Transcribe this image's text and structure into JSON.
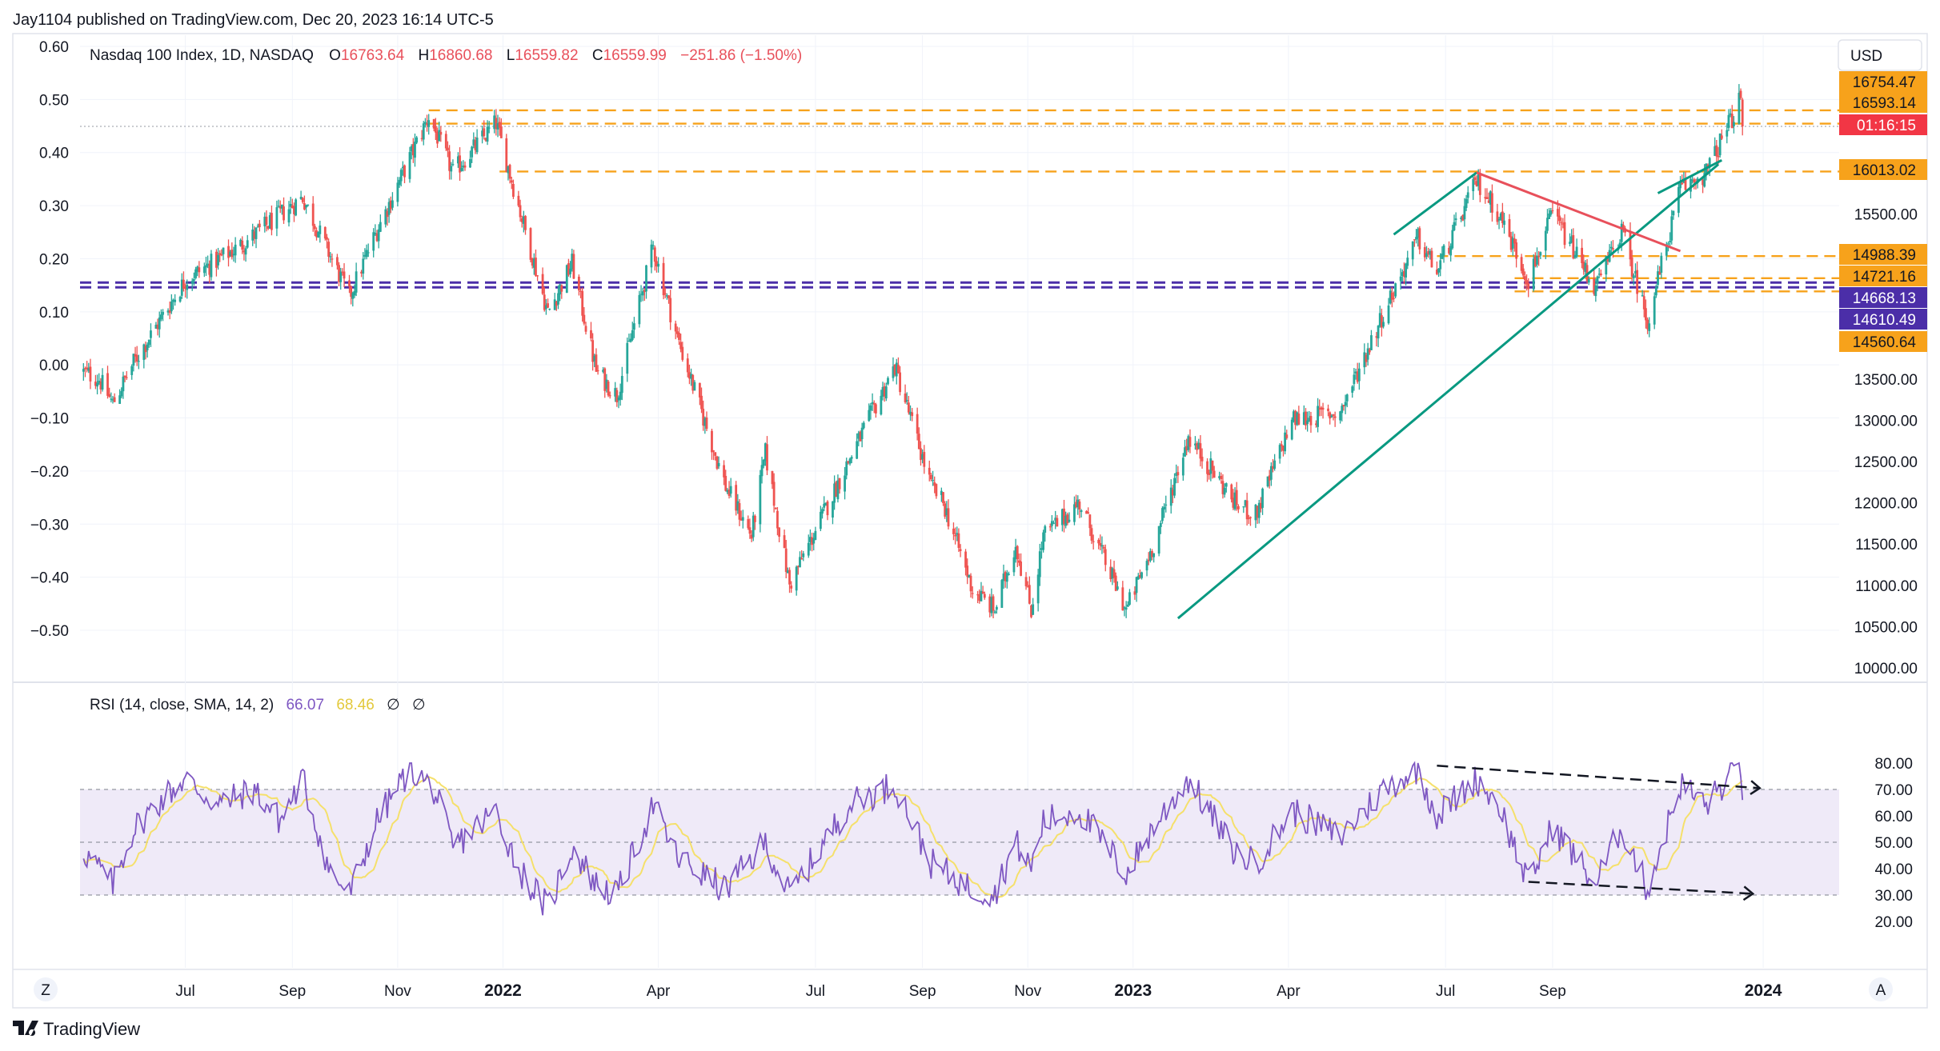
{
  "publisher": "Jay1104 published on TradingView.com, Dec 20, 2023 16:14 UTC-5",
  "brand": "TradingView",
  "currency_button": "USD",
  "z_button": "Z",
  "a_button": "A",
  "colors": {
    "up": "#26a69a",
    "down": "#ef5350",
    "orange_line": "#f7a21b",
    "purple_line": "#4b2ea8",
    "green_trend": "#089981",
    "red_trend": "#e8505b",
    "rsi_line": "#7e57c2",
    "rsi_sma": "#f5e06b",
    "rsi_band": "#efeaf8",
    "countdown": "#f23645"
  },
  "chart_data": [
    {
      "type": "candlestick",
      "name": "price-panel",
      "ohlc_header": {
        "symbol": "Nasdaq 100 Index, 1D, NASDAQ",
        "o_label": "O",
        "o": "16763.64",
        "h_label": "H",
        "h": "16860.68",
        "l_label": "L",
        "l": "16559.82",
        "c_label": "C",
        "c": "16559.99",
        "change": "−251.86 (−1.50%)"
      },
      "left_axis": {
        "ticks": [
          "0.60",
          "0.50",
          "0.40",
          "0.30",
          "0.20",
          "0.10",
          "0.00",
          "−0.10",
          "−0.20",
          "−0.30",
          "−0.40",
          "−0.50"
        ],
        "values": [
          0.6,
          0.5,
          0.4,
          0.3,
          0.2,
          0.1,
          0.0,
          -0.1,
          -0.2,
          -0.3,
          -0.4,
          -0.5
        ]
      },
      "right_axis": {
        "ticks": [
          "15500.00",
          "13500.00",
          "13000.00",
          "12500.00",
          "12000.00",
          "11500.00",
          "11000.00",
          "10500.00",
          "10000.00"
        ],
        "values": [
          15500,
          13500,
          13000,
          12500,
          12000,
          11500,
          11000,
          10500,
          10000
        ]
      },
      "x_axis": {
        "labels": [
          "Jul",
          "Sep",
          "Nov",
          "2022",
          "Apr",
          "Jul",
          "Sep",
          "Nov",
          "2023",
          "Apr",
          "Jul",
          "Sep",
          "2024"
        ],
        "dates": [
          "2021-07-01",
          "2021-09-01",
          "2021-11-01",
          "2022-01-01",
          "2022-04-01",
          "2022-07-01",
          "2022-09-01",
          "2022-11-01",
          "2023-01-01",
          "2023-04-01",
          "2023-07-01",
          "2023-09-01",
          "2024-01-01"
        ],
        "bold": [
          false,
          false,
          false,
          true,
          false,
          false,
          false,
          false,
          true,
          false,
          false,
          false,
          true
        ],
        "start": "2021-05-01",
        "end": "2024-02-14"
      },
      "key_path": [
        [
          "2021-05-01",
          13600
        ],
        [
          "2021-05-12",
          13500
        ],
        [
          "2021-05-20",
          13200
        ],
        [
          "2021-06-01",
          13700
        ],
        [
          "2021-07-01",
          14700
        ],
        [
          "2021-08-01",
          15100
        ],
        [
          "2021-09-07",
          15700
        ],
        [
          "2021-10-04",
          14500
        ],
        [
          "2021-10-20",
          15300
        ],
        [
          "2021-11-19",
          16680
        ],
        [
          "2021-12-03",
          16000
        ],
        [
          "2021-12-28",
          16600
        ],
        [
          "2022-01-10",
          15600
        ],
        [
          "2022-01-27",
          14300
        ],
        [
          "2022-02-10",
          14900
        ],
        [
          "2022-02-24",
          13600
        ],
        [
          "2022-03-08",
          13300
        ],
        [
          "2022-03-29",
          15100
        ],
        [
          "2022-04-12",
          14000
        ],
        [
          "2022-05-10",
          12200
        ],
        [
          "2022-05-25",
          11600
        ],
        [
          "2022-06-02",
          12600
        ],
        [
          "2022-06-16",
          11000
        ],
        [
          "2022-07-20",
          12500
        ],
        [
          "2022-08-16",
          13650
        ],
        [
          "2022-09-06",
          12200
        ],
        [
          "2022-09-13",
          12000
        ],
        [
          "2022-09-30",
          10950
        ],
        [
          "2022-10-13",
          10700
        ],
        [
          "2022-10-25",
          11500
        ],
        [
          "2022-11-03",
          10700
        ],
        [
          "2022-11-10",
          11600
        ],
        [
          "2022-12-01",
          12000
        ],
        [
          "2022-12-28",
          10700
        ],
        [
          "2023-01-13",
          11500
        ],
        [
          "2023-02-02",
          12800
        ],
        [
          "2023-03-01",
          12000
        ],
        [
          "2023-03-13",
          11850
        ],
        [
          "2023-04-03",
          13000
        ],
        [
          "2023-05-01",
          13100
        ],
        [
          "2023-05-26",
          14300
        ],
        [
          "2023-06-15",
          15200
        ],
        [
          "2023-06-26",
          14800
        ],
        [
          "2023-07-19",
          15900
        ],
        [
          "2023-08-01",
          15500
        ],
        [
          "2023-08-18",
          14700
        ],
        [
          "2023-09-01",
          15500
        ],
        [
          "2023-09-26",
          14600
        ],
        [
          "2023-10-11",
          15300
        ],
        [
          "2023-10-26",
          14200
        ],
        [
          "2023-11-14",
          15800
        ],
        [
          "2023-11-29",
          16000
        ],
        [
          "2023-12-19",
          16890
        ],
        [
          "2023-12-20",
          16560
        ]
      ],
      "price_labels": [
        {
          "text": "16754.47",
          "price": 16754.47,
          "style": "orange"
        },
        {
          "text": "16593.14",
          "price": 16593.14,
          "style": "orange"
        },
        {
          "text": "01:16:15",
          "price": 16559.99,
          "style": "countdown"
        },
        {
          "text": "16013.02",
          "price": 16013.02,
          "style": "orange"
        },
        {
          "text": "14988.39",
          "price": 14988.39,
          "style": "orange"
        },
        {
          "text": "14721.16",
          "price": 14721.16,
          "style": "orange"
        },
        {
          "text": "14668.13",
          "price": 14668.13,
          "style": "purple"
        },
        {
          "text": "14610.49",
          "price": 14610.49,
          "style": "purple"
        },
        {
          "text": "14560.64",
          "price": 14560.64,
          "style": "orange"
        }
      ],
      "levels": [
        {
          "price": 16754.47,
          "from": "2021-11-19",
          "style": "orange"
        },
        {
          "price": 16593.14,
          "from": "2021-11-19",
          "style": "orange"
        },
        {
          "price": 16013.02,
          "from": "2021-12-30",
          "style": "orange"
        },
        {
          "price": 14988.39,
          "from": "2023-06-26",
          "style": "orange"
        },
        {
          "price": 14721.16,
          "from": "2023-08-10",
          "style": "orange"
        },
        {
          "price": 14560.64,
          "from": "2023-08-10",
          "style": "orange"
        },
        {
          "price": 14668.13,
          "from": "2021-05-01",
          "style": "purple"
        },
        {
          "price": 14610.49,
          "from": "2021-05-01",
          "style": "purple"
        }
      ],
      "trendlines": [
        {
          "from": [
            "2023-01-27",
            10600
          ],
          "to": [
            "2023-12-06",
            16100
          ],
          "style": "green"
        },
        {
          "from": [
            "2023-06-01",
            15250
          ],
          "to": [
            "2023-07-19",
            16000
          ],
          "style": "green"
        },
        {
          "from": [
            "2023-07-19",
            16000
          ],
          "to": [
            "2023-11-14",
            15050
          ],
          "style": "red"
        },
        {
          "from": [
            "2023-11-01",
            15750
          ],
          "to": [
            "2023-12-08",
            16150
          ],
          "style": "green"
        }
      ]
    },
    {
      "type": "line",
      "name": "rsi-panel",
      "header": {
        "label": "RSI (14, close, SMA, 14, 2)",
        "rsi": "66.07",
        "sma": "68.46",
        "sym1": "∅",
        "sym2": "∅"
      },
      "axis": {
        "ticks": [
          "80.00",
          "70.00",
          "60.00",
          "50.00",
          "40.00",
          "30.00",
          "20.00"
        ],
        "values": [
          80,
          70,
          60,
          50,
          40,
          30,
          20
        ]
      },
      "bands": {
        "upper": 70,
        "middle": 50,
        "lower": 30
      },
      "key_path": [
        [
          "2021-05-01",
          48
        ],
        [
          "2021-05-12",
          40
        ],
        [
          "2021-05-20",
          34
        ],
        [
          "2021-06-01",
          55
        ],
        [
          "2021-06-20",
          68
        ],
        [
          "2021-07-01",
          74
        ],
        [
          "2021-07-20",
          64
        ],
        [
          "2021-08-10",
          70
        ],
        [
          "2021-08-25",
          58
        ],
        [
          "2021-09-07",
          74
        ],
        [
          "2021-09-22",
          40
        ],
        [
          "2021-10-04",
          30
        ],
        [
          "2021-10-20",
          58
        ],
        [
          "2021-11-08",
          78
        ],
        [
          "2021-11-22",
          70
        ],
        [
          "2021-12-03",
          48
        ],
        [
          "2021-12-28",
          62
        ],
        [
          "2022-01-10",
          40
        ],
        [
          "2022-01-27",
          25
        ],
        [
          "2022-02-10",
          48
        ],
        [
          "2022-02-24",
          34
        ],
        [
          "2022-03-08",
          30
        ],
        [
          "2022-03-29",
          64
        ],
        [
          "2022-04-12",
          44
        ],
        [
          "2022-05-10",
          32
        ],
        [
          "2022-06-02",
          50
        ],
        [
          "2022-06-16",
          30
        ],
        [
          "2022-07-20",
          64
        ],
        [
          "2022-08-16",
          72
        ],
        [
          "2022-09-06",
          42
        ],
        [
          "2022-09-30",
          32
        ],
        [
          "2022-10-13",
          31
        ],
        [
          "2022-10-25",
          50
        ],
        [
          "2022-11-03",
          40
        ],
        [
          "2022-11-10",
          58
        ],
        [
          "2022-12-01",
          62
        ],
        [
          "2022-12-28",
          38
        ],
        [
          "2023-01-13",
          56
        ],
        [
          "2023-02-02",
          74
        ],
        [
          "2023-03-01",
          46
        ],
        [
          "2023-03-13",
          42
        ],
        [
          "2023-04-03",
          62
        ],
        [
          "2023-05-01",
          52
        ],
        [
          "2023-05-26",
          70
        ],
        [
          "2023-06-15",
          78
        ],
        [
          "2023-06-26",
          60
        ],
        [
          "2023-07-19",
          74
        ],
        [
          "2023-08-01",
          64
        ],
        [
          "2023-08-18",
          34
        ],
        [
          "2023-09-01",
          56
        ],
        [
          "2023-09-26",
          34
        ],
        [
          "2023-10-11",
          56
        ],
        [
          "2023-10-26",
          32
        ],
        [
          "2023-11-14",
          72
        ],
        [
          "2023-11-29",
          64
        ],
        [
          "2023-12-14",
          76
        ],
        [
          "2023-12-19",
          78
        ],
        [
          "2023-12-20",
          66
        ]
      ],
      "trendlines": [
        {
          "from": [
            "2023-06-26",
            79
          ],
          "to": [
            "2023-12-30",
            70.5
          ],
          "style": "dashed-arrow"
        },
        {
          "from": [
            "2023-08-18",
            35
          ],
          "to": [
            "2023-12-26",
            30.5
          ],
          "style": "dashed-arrow"
        }
      ]
    }
  ]
}
